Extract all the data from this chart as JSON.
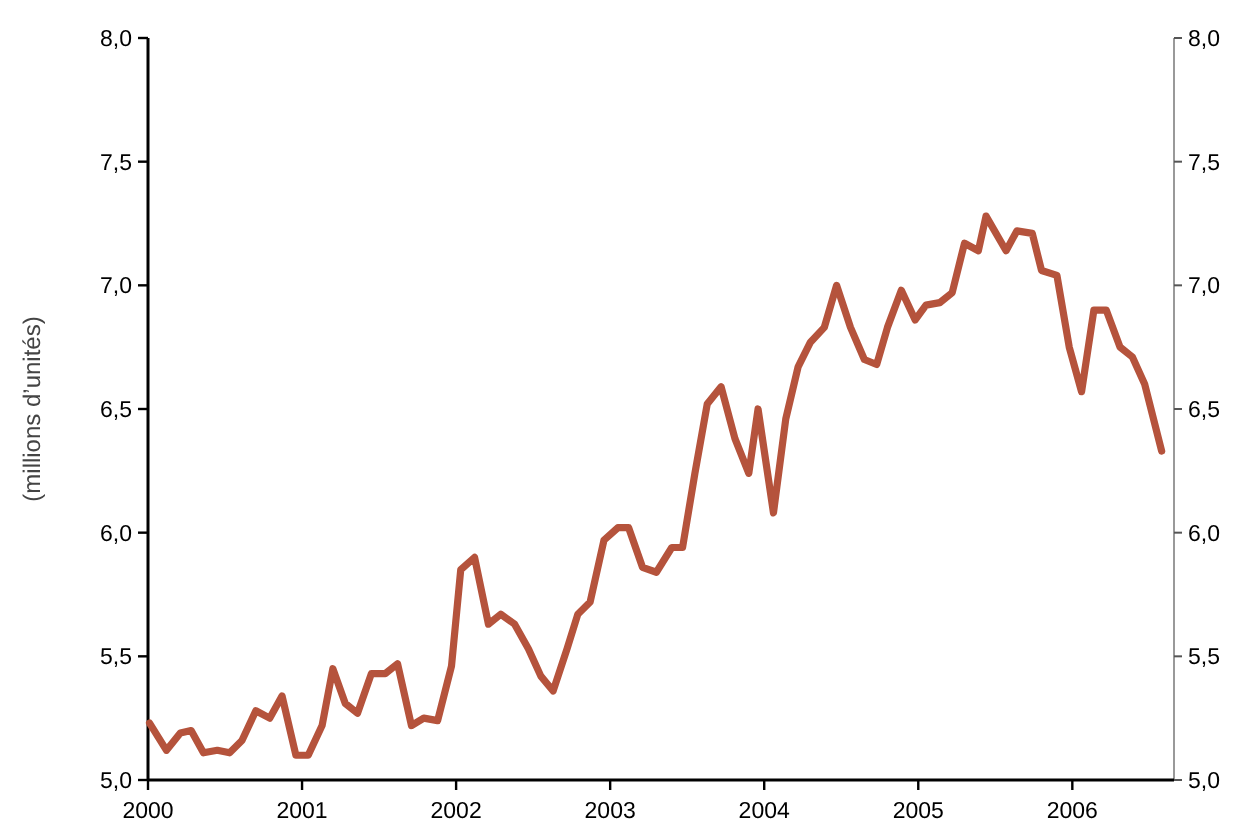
{
  "chart_data": {
    "type": "line",
    "ylabel": "(millions d’unités)",
    "x": [
      2000.01,
      2000.12,
      2000.21,
      2000.28,
      2000.36,
      2000.45,
      2000.53,
      2000.61,
      2000.7,
      2000.79,
      2000.87,
      2000.96,
      2001.04,
      2001.13,
      2001.2,
      2001.28,
      2001.36,
      2001.45,
      2001.54,
      2001.62,
      2001.71,
      2001.79,
      2001.88,
      2001.97,
      2002.03,
      2002.12,
      2002.21,
      2002.29,
      2002.38,
      2002.47,
      2002.55,
      2002.63,
      2002.72,
      2002.79,
      2002.87,
      2002.96,
      2003.05,
      2003.12,
      2003.21,
      2003.3,
      2003.4,
      2003.47,
      2003.55,
      2003.63,
      2003.72,
      2003.81,
      2003.9,
      2003.96,
      2004.06,
      2004.14,
      2004.22,
      2004.3,
      2004.39,
      2004.47,
      2004.56,
      2004.65,
      2004.73,
      2004.8,
      2004.89,
      2004.98,
      2005.05,
      2005.14,
      2005.22,
      2005.3,
      2005.39,
      2005.44,
      2005.57,
      2005.64,
      2005.74,
      2005.8,
      2005.9,
      2005.98,
      2006.06,
      2006.14,
      2006.22,
      2006.31,
      2006.39,
      2006.47,
      2006.58
    ],
    "series": [
      {
        "color": "#b5533c",
        "values": [
          5.23,
          5.12,
          5.19,
          5.2,
          5.11,
          5.12,
          5.11,
          5.16,
          5.28,
          5.25,
          5.34,
          5.1,
          5.1,
          5.22,
          5.45,
          5.31,
          5.27,
          5.43,
          5.43,
          5.47,
          5.22,
          5.25,
          5.24,
          5.46,
          5.85,
          5.9,
          5.63,
          5.67,
          5.63,
          5.53,
          5.42,
          5.36,
          5.53,
          5.67,
          5.72,
          5.97,
          6.02,
          6.02,
          5.86,
          5.84,
          5.94,
          5.94,
          6.24,
          6.52,
          6.59,
          6.38,
          6.24,
          6.5,
          6.08,
          6.46,
          6.67,
          6.77,
          6.83,
          7.0,
          6.83,
          6.7,
          6.68,
          6.83,
          6.98,
          6.86,
          6.92,
          6.93,
          6.97,
          7.17,
          7.14,
          7.28,
          7.14,
          7.22,
          7.21,
          7.06,
          7.04,
          6.75,
          6.57,
          6.9,
          6.9,
          6.75,
          6.71,
          6.6,
          6.33
        ]
      }
    ],
    "xlim": [
      2000,
      2006.66
    ],
    "xticks": [
      2000,
      2001,
      2002,
      2003,
      2004,
      2005,
      2006
    ],
    "ylim": [
      5,
      8
    ],
    "yticks": [
      {
        "value": 5,
        "label": "5,0"
      },
      {
        "value": 5.5,
        "label": "5,5"
      },
      {
        "value": 6,
        "label": "6,0"
      },
      {
        "value": 6.5,
        "label": "6,5"
      },
      {
        "value": 7,
        "label": "7,0"
      },
      {
        "value": 7.5,
        "label": "7,5"
      },
      {
        "value": 8,
        "label": "8,0"
      }
    ],
    "y2lim": [
      5,
      8
    ],
    "y2ticks": [
      {
        "value": 5,
        "label": "5,0"
      },
      {
        "value": 5.5,
        "label": "5,5"
      },
      {
        "value": 6,
        "label": "6,0"
      },
      {
        "value": 6.5,
        "label": "6,5"
      },
      {
        "value": 7,
        "label": "7,0"
      },
      {
        "value": 7.5,
        "label": "7,5"
      },
      {
        "value": 8,
        "label": "8,0"
      }
    ],
    "marker": "none",
    "line_style": "solid"
  }
}
